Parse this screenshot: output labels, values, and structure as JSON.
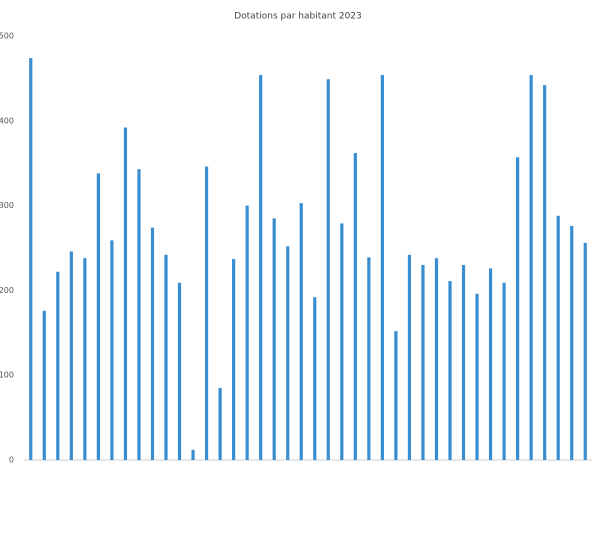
{
  "chart_data": {
    "type": "bar",
    "title": "Dotations par habitant 2023",
    "categories": [
      null,
      null,
      null,
      null,
      null,
      null,
      null,
      null,
      null,
      null,
      null,
      null,
      null,
      null,
      null,
      null,
      null,
      null,
      null,
      null,
      null,
      null,
      null,
      null,
      null,
      null,
      null,
      null,
      null,
      null,
      null,
      null,
      null,
      null,
      null,
      null,
      null,
      null,
      null,
      null,
      null,
      null
    ],
    "values": [
      474,
      176,
      222,
      246,
      238,
      338,
      259,
      392,
      343,
      274,
      242,
      209,
      12,
      346,
      85,
      237,
      300,
      454,
      285,
      252,
      303,
      192,
      449,
      279,
      362,
      239,
      454,
      152,
      242,
      230,
      238,
      211,
      230,
      196,
      226,
      209,
      357,
      454,
      442,
      288,
      276,
      256
    ],
    "color": "#3a8ed0",
    "ylim": [
      0,
      500
    ],
    "yticks": [
      0,
      100,
      200,
      300,
      400,
      500
    ],
    "grid": false
  }
}
